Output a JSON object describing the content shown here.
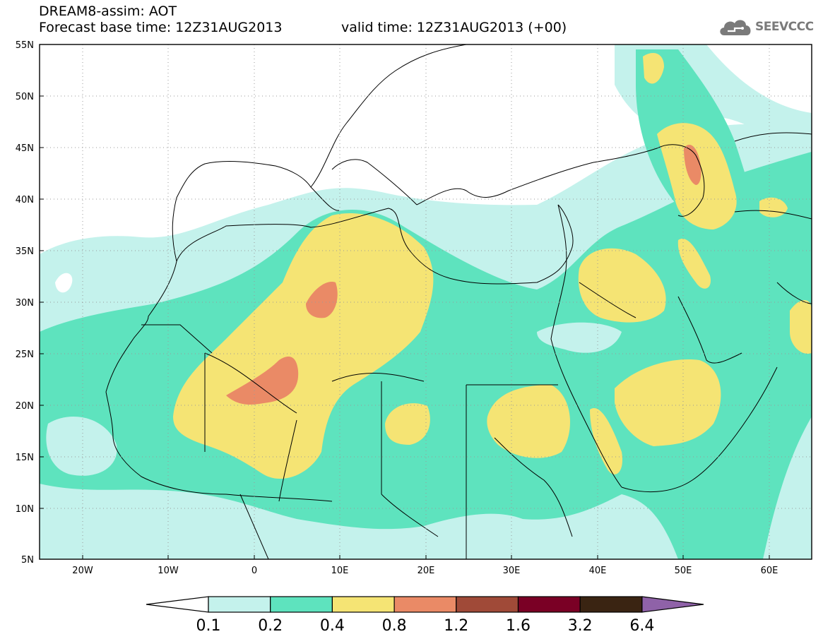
{
  "header": {
    "line1": "DREAM8-assim: AOT",
    "line2_left": "Forecast base time: 12Z31AUG2013",
    "line2_right": "valid time: 12Z31AUG2013 (+00)",
    "logo_text": "SEEVCCC",
    "logo_icon": "cloud-icon"
  },
  "map": {
    "lat_labels": [
      "55N",
      "50N",
      "45N",
      "40N",
      "35N",
      "30N",
      "25N",
      "20N",
      "15N",
      "10N",
      "5N"
    ],
    "lon_labels": [
      "20W",
      "10W",
      "0",
      "10E",
      "20E",
      "30E",
      "40E",
      "50E",
      "60E"
    ],
    "land_outline_color": "#000000",
    "grid_style": "dotted"
  },
  "colorbar": {
    "labels": [
      "0.1",
      "0.2",
      "0.4",
      "0.8",
      "1.2",
      "1.6",
      "3.2",
      "6.4"
    ],
    "colors": [
      "#ffffff",
      "#c4f2ec",
      "#5ee3be",
      "#f5e474",
      "#ea8a66",
      "#a04a38",
      "#7a0025",
      "#3a2412",
      "#8f62a8"
    ]
  }
}
